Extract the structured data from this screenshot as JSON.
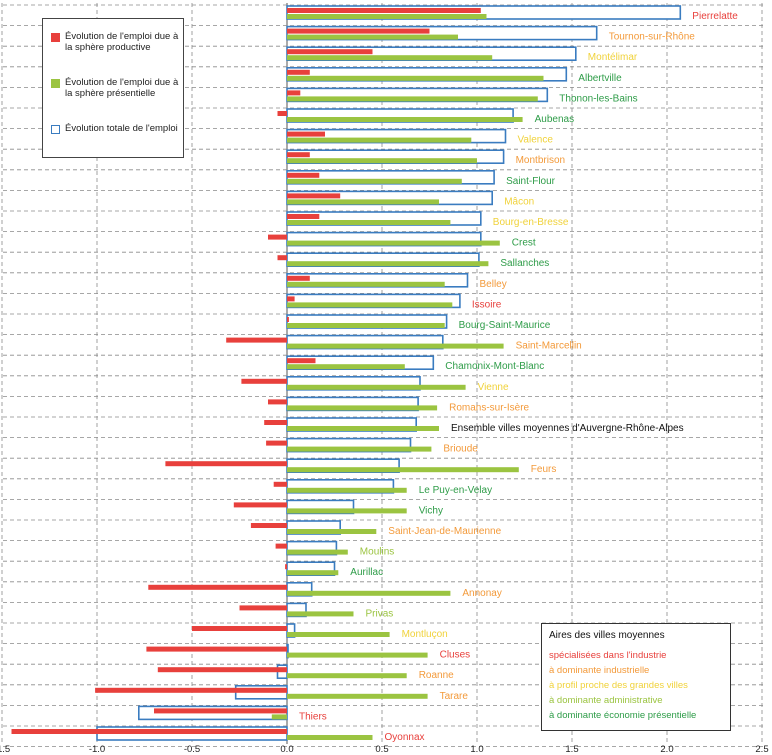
{
  "chart_data": {
    "type": "bar",
    "orientation": "horizontal",
    "xlim": [
      -1.5,
      2.5
    ],
    "x_ticks": [
      "-1.5",
      "-1.0",
      "-0.5",
      "0.0",
      "0.5",
      "1.0",
      "1.5",
      "2.0",
      "2.5"
    ],
    "x_tick_values": [
      -1.5,
      -1.0,
      -0.5,
      0.0,
      0.5,
      1.0,
      1.5,
      2.0,
      2.5
    ],
    "grid": true,
    "legend_position": "top-left",
    "series": [
      {
        "name": "Évolution de l'emploi due à la sphère productive",
        "color": "#e8403c",
        "style": "filled"
      },
      {
        "name": "Évolution de l'emploi due à la sphère présentielle",
        "color": "#9bc441",
        "style": "filled"
      },
      {
        "name": "Évolution totale de l'emploi",
        "color": "#3a7cc0",
        "style": "outline"
      }
    ],
    "categories": [
      {
        "label": "Pierrelatte",
        "color": "#e8403c",
        "productive": 1.02,
        "presentielle": 1.05,
        "total": 2.07
      },
      {
        "label": "Tournon-sur-Rhône",
        "color": "#f39a3a",
        "productive": 0.75,
        "presentielle": 0.9,
        "total": 1.63
      },
      {
        "label": "Montélimar",
        "color": "#f0d23a",
        "productive": 0.45,
        "presentielle": 1.08,
        "total": 1.52
      },
      {
        "label": "Albertville",
        "color": "#2e9c48",
        "productive": 0.12,
        "presentielle": 1.35,
        "total": 1.47
      },
      {
        "label": "Thonon-les-Bains",
        "color": "#2e9c48",
        "productive": 0.07,
        "presentielle": 1.32,
        "total": 1.37
      },
      {
        "label": "Aubenas",
        "color": "#2e9c48",
        "productive": -0.05,
        "presentielle": 1.24,
        "total": 1.19
      },
      {
        "label": "Valence",
        "color": "#f0d23a",
        "productive": 0.2,
        "presentielle": 0.97,
        "total": 1.15
      },
      {
        "label": "Montbrison",
        "color": "#f39a3a",
        "productive": 0.12,
        "presentielle": 1.0,
        "total": 1.14
      },
      {
        "label": "Saint-Flour",
        "color": "#2e9c48",
        "productive": 0.17,
        "presentielle": 0.92,
        "total": 1.09
      },
      {
        "label": "Mâcon",
        "color": "#f0d23a",
        "productive": 0.28,
        "presentielle": 0.8,
        "total": 1.08
      },
      {
        "label": "Bourg-en-Bresse",
        "color": "#f0d23a",
        "productive": 0.17,
        "presentielle": 0.86,
        "total": 1.02
      },
      {
        "label": "Crest",
        "color": "#2e9c48",
        "productive": -0.1,
        "presentielle": 1.12,
        "total": 1.02
      },
      {
        "label": "Sallanches",
        "color": "#2e9c48",
        "productive": -0.05,
        "presentielle": 1.06,
        "total": 1.01
      },
      {
        "label": "Belley",
        "color": "#f39a3a",
        "productive": 0.12,
        "presentielle": 0.83,
        "total": 0.95
      },
      {
        "label": "Issoire",
        "color": "#e8403c",
        "productive": 0.04,
        "presentielle": 0.87,
        "total": 0.91
      },
      {
        "label": "Bourg-Saint-Maurice",
        "color": "#2e9c48",
        "productive": 0.01,
        "presentielle": 0.83,
        "total": 0.84
      },
      {
        "label": "Saint-Marcellin",
        "color": "#f39a3a",
        "productive": -0.32,
        "presentielle": 1.14,
        "total": 0.82
      },
      {
        "label": "Chamonix-Mont-Blanc",
        "color": "#2e9c48",
        "productive": 0.15,
        "presentielle": 0.62,
        "total": 0.77
      },
      {
        "label": "Vienne",
        "color": "#f0d23a",
        "productive": -0.24,
        "presentielle": 0.94,
        "total": 0.7
      },
      {
        "label": "Romans-sur-Isère",
        "color": "#f39a3a",
        "productive": -0.1,
        "presentielle": 0.79,
        "total": 0.69
      },
      {
        "label": "Ensemble villes moyennes d'Auvergne-Rhône-Alpes",
        "color": "#111111",
        "productive": -0.12,
        "presentielle": 0.8,
        "total": 0.68
      },
      {
        "label": "Brioude",
        "color": "#f39a3a",
        "productive": -0.11,
        "presentielle": 0.76,
        "total": 0.65
      },
      {
        "label": "Feurs",
        "color": "#f39a3a",
        "productive": -0.64,
        "presentielle": 1.22,
        "total": 0.59
      },
      {
        "label": "Le Puy-en-Velay",
        "color": "#2e9c48",
        "productive": -0.07,
        "presentielle": 0.63,
        "total": 0.56
      },
      {
        "label": "Vichy",
        "color": "#2e9c48",
        "productive": -0.28,
        "presentielle": 0.63,
        "total": 0.35
      },
      {
        "label": "Saint-Jean-de-Maurienne",
        "color": "#f39a3a",
        "productive": -0.19,
        "presentielle": 0.47,
        "total": 0.28
      },
      {
        "label": "Moulins",
        "color": "#9bc441",
        "productive": -0.06,
        "presentielle": 0.32,
        "total": 0.26
      },
      {
        "label": "Aurillac",
        "color": "#2e9c48",
        "productive": -0.01,
        "presentielle": 0.27,
        "total": 0.25
      },
      {
        "label": "Annonay",
        "color": "#f39a3a",
        "productive": -0.73,
        "presentielle": 0.86,
        "total": 0.13
      },
      {
        "label": "Privas",
        "color": "#9bc441",
        "productive": -0.25,
        "presentielle": 0.35,
        "total": 0.1
      },
      {
        "label": "Montluçon",
        "color": "#f0d23a",
        "productive": -0.5,
        "presentielle": 0.54,
        "total": 0.04
      },
      {
        "label": "Cluses",
        "color": "#e8403c",
        "productive": -0.74,
        "presentielle": 0.74,
        "total": 0.0
      },
      {
        "label": "Roanne",
        "color": "#f39a3a",
        "productive": -0.68,
        "presentielle": 0.63,
        "total": -0.05
      },
      {
        "label": "Tarare",
        "color": "#f39a3a",
        "productive": -1.01,
        "presentielle": 0.74,
        "total": -0.27
      },
      {
        "label": "Thiers",
        "color": "#e8403c",
        "productive": -0.7,
        "presentielle": -0.08,
        "total": -0.78
      },
      {
        "label": "Oyonnax",
        "color": "#e8403c",
        "productive": -1.45,
        "presentielle": 0.45,
        "total": -1.0
      }
    ],
    "category_legend": {
      "title": "Aires des villes moyennes",
      "items": [
        {
          "label": "spécialisées dans l'industrie",
          "color": "#e8403c"
        },
        {
          "label": "à dominante industrielle",
          "color": "#f39a3a"
        },
        {
          "label": "à profil proche des grandes villes",
          "color": "#f0d23a"
        },
        {
          "label": "à dominante administrative",
          "color": "#9bc441"
        },
        {
          "label": "à dominante économie présentielle",
          "color": "#2e9c48"
        }
      ]
    }
  }
}
